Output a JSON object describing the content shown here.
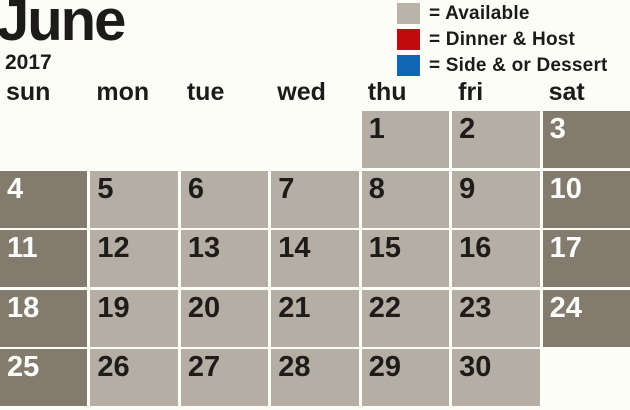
{
  "title": "June",
  "year": "2017",
  "legend": {
    "items": [
      {
        "icon": "available-swatch",
        "color": "#b9b3aa",
        "label": "= Available"
      },
      {
        "icon": "dinner-host-swatch",
        "color": "#c00b0e",
        "label": "= Dinner & Host"
      },
      {
        "icon": "side-dessert-swatch",
        "color": "#1066b3",
        "label": "= Side & or Dessert"
      }
    ]
  },
  "weekdays": [
    "sun",
    "mon",
    "tue",
    "wed",
    "thu",
    "fri",
    "sat"
  ],
  "calendar": {
    "weeks": [
      [
        "",
        "",
        "",
        "",
        "1",
        "2",
        "3"
      ],
      [
        "4",
        "5",
        "6",
        "7",
        "8",
        "9",
        "10"
      ],
      [
        "11",
        "12",
        "13",
        "14",
        "15",
        "16",
        "17"
      ],
      [
        "18",
        "19",
        "20",
        "21",
        "22",
        "23",
        "24"
      ],
      [
        "25",
        "26",
        "27",
        "28",
        "29",
        "30",
        ""
      ]
    ]
  },
  "colors": {
    "background": "#fcfdf7",
    "cell_available": "#b5aea4",
    "cell_weekend": "#847b6f",
    "day_text": "#1d1c1a",
    "weekend_day_text": "#fdfdfb",
    "legend_available": "#b9b3aa",
    "legend_dinner_host": "#c00b0e",
    "legend_side_dessert": "#1066b3"
  }
}
